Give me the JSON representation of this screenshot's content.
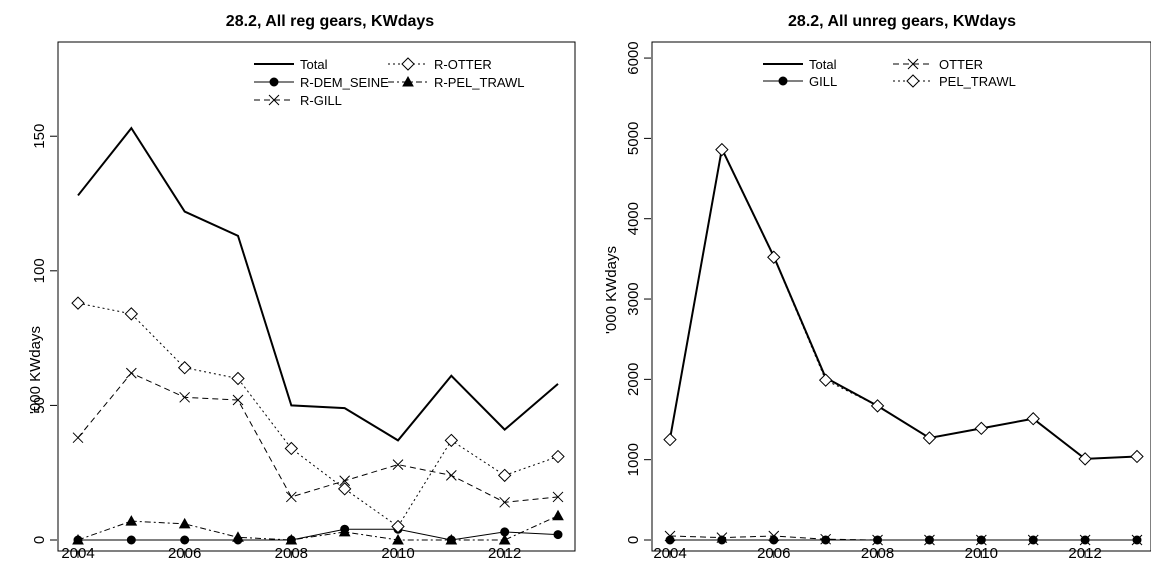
{
  "chart_data": [
    {
      "type": "line",
      "title": "28.2, All reg gears, KWdays",
      "xlabel": "",
      "ylabel": "'000 KWdays",
      "x": [
        2004,
        2005,
        2006,
        2007,
        2008,
        2009,
        2010,
        2011,
        2012,
        2013
      ],
      "xlim": [
        2004,
        2013
      ],
      "ylim": [
        0,
        185
      ],
      "xticks": [
        "2004",
        "2006",
        "2008",
        "2010",
        "2012"
      ],
      "yticks": [
        "0",
        "50",
        "100",
        "150"
      ],
      "grid": false,
      "legend_position": "top-right",
      "series": [
        {
          "name": "Total",
          "line": "solid",
          "marker": "none",
          "values": [
            128,
            153,
            122,
            113,
            50,
            49,
            37,
            61,
            41,
            58
          ]
        },
        {
          "name": "R-DEM_SEINE",
          "line": "solid-thin",
          "marker": "filled-circle",
          "values": [
            0,
            0,
            0,
            0,
            0,
            4,
            4,
            0,
            3,
            2
          ]
        },
        {
          "name": "R-GILL",
          "line": "dashed",
          "marker": "cross",
          "values": [
            38,
            62,
            53,
            52,
            16,
            22,
            28,
            24,
            14,
            16
          ]
        },
        {
          "name": "R-OTTER",
          "line": "dotted",
          "marker": "open-diamond",
          "values": [
            88,
            84,
            64,
            60,
            34,
            19,
            5,
            37,
            24,
            31
          ]
        },
        {
          "name": "R-PEL_TRAWL",
          "line": "dash-dot",
          "marker": "filled-triangle",
          "values": [
            0,
            7,
            6,
            1,
            0,
            3,
            0,
            0,
            0,
            9
          ]
        }
      ]
    },
    {
      "type": "line",
      "title": "28.2, All unreg gears, KWdays",
      "xlabel": "",
      "ylabel": "'000 KWdays",
      "x": [
        2004,
        2005,
        2006,
        2007,
        2008,
        2009,
        2010,
        2011,
        2012,
        2013
      ],
      "xlim": [
        2004,
        2013
      ],
      "ylim": [
        0,
        6200
      ],
      "xticks": [
        "2004",
        "2006",
        "2008",
        "2010",
        "2012"
      ],
      "yticks": [
        "0",
        "1000",
        "2000",
        "3000",
        "4000",
        "5000",
        "6000"
      ],
      "grid": false,
      "legend_position": "top-center",
      "series": [
        {
          "name": "Total",
          "line": "solid",
          "marker": "none",
          "values": [
            1260,
            4870,
            3530,
            2020,
            1670,
            1270,
            1390,
            1510,
            1010,
            1040
          ]
        },
        {
          "name": "GILL",
          "line": "solid-thin",
          "marker": "filled-circle",
          "values": [
            0,
            0,
            0,
            0,
            0,
            0,
            0,
            0,
            0,
            0
          ]
        },
        {
          "name": "OTTER",
          "line": "dashed",
          "marker": "cross",
          "values": [
            50,
            30,
            50,
            10,
            0,
            0,
            0,
            0,
            0,
            0
          ]
        },
        {
          "name": "PEL_TRAWL",
          "line": "dotted",
          "marker": "open-diamond",
          "values": [
            1250,
            4860,
            3520,
            1990,
            1670,
            1270,
            1390,
            1510,
            1010,
            1040
          ]
        }
      ]
    }
  ]
}
